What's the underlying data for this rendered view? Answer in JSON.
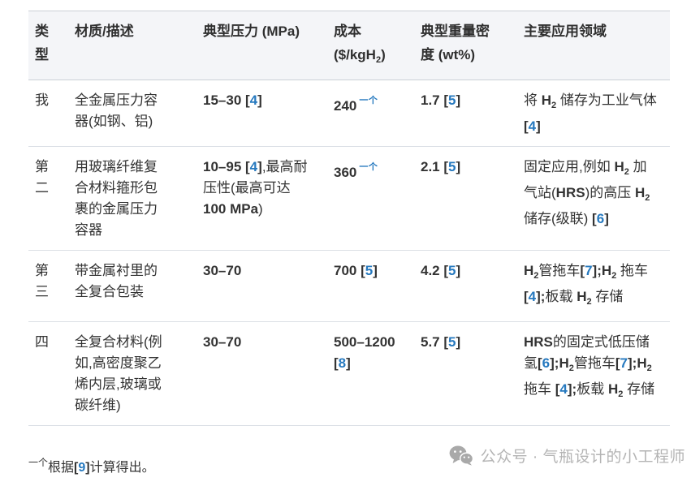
{
  "colors": {
    "accent_blue": "#2679bf",
    "header_bg": "#f4f5f8",
    "row_border": "#dbdfe5",
    "watermark_gray": "#b4b4b4",
    "text": "#333333"
  },
  "table": {
    "headers": [
      {
        "runs": [
          {
            "t": "类型"
          }
        ]
      },
      {
        "runs": [
          {
            "t": "材质/描述"
          }
        ]
      },
      {
        "runs": [
          {
            "t": "典型压力 (MPa)"
          }
        ]
      },
      {
        "runs": [
          {
            "t": "成本 ($/kgH"
          },
          {
            "t": "2",
            "s": "sub"
          },
          {
            "t": ")"
          }
        ]
      },
      {
        "runs": [
          {
            "t": "典型重量密度 (wt%)"
          }
        ]
      },
      {
        "runs": [
          {
            "t": "主要应用领域"
          }
        ]
      }
    ],
    "rows": [
      {
        "cells": [
          [
            {
              "t": "我"
            }
          ],
          [
            {
              "t": "全金属压力容器(如钢、铝)"
            }
          ],
          [
            {
              "t": "15–30 [",
              "s": "b"
            },
            {
              "t": "4",
              "s": "ref"
            },
            {
              "t": "]",
              "s": "b"
            }
          ],
          [
            {
              "t": "240",
              "s": "b"
            },
            {
              "t": "一个",
              "s": "supref"
            }
          ],
          [
            {
              "t": "1.7 [",
              "s": "b"
            },
            {
              "t": "5",
              "s": "ref"
            },
            {
              "t": "]",
              "s": "b"
            }
          ],
          [
            {
              "t": "将 "
            },
            {
              "t": "H",
              "s": "b"
            },
            {
              "t": "2",
              "s": "sub"
            },
            {
              "t": " 储存为工业气体 "
            },
            {
              "t": "[",
              "s": "b"
            },
            {
              "t": "4",
              "s": "ref"
            },
            {
              "t": "]",
              "s": "b"
            }
          ]
        ]
      },
      {
        "cells": [
          [
            {
              "t": "第二"
            }
          ],
          [
            {
              "t": "用玻璃纤维复合材料箍形包裹的金属压力容器"
            }
          ],
          [
            {
              "t": "10–95 [",
              "s": "b"
            },
            {
              "t": "4",
              "s": "ref"
            },
            {
              "t": "]",
              "s": "b"
            },
            {
              "t": ",最高耐压性(最高可达 "
            },
            {
              "t": "100 MPa",
              "s": "b"
            },
            {
              "t": ")"
            }
          ],
          [
            {
              "t": "360",
              "s": "b"
            },
            {
              "t": "一个",
              "s": "supref"
            }
          ],
          [
            {
              "t": "2.1 [",
              "s": "b"
            },
            {
              "t": "5",
              "s": "ref"
            },
            {
              "t": "]",
              "s": "b"
            }
          ],
          [
            {
              "t": "固定应用,例如 "
            },
            {
              "t": "H",
              "s": "b"
            },
            {
              "t": "2",
              "s": "sub"
            },
            {
              "t": " 加气站("
            },
            {
              "t": "HRS",
              "s": "b"
            },
            {
              "t": ")的高压 "
            },
            {
              "t": "H",
              "s": "b"
            },
            {
              "t": "2",
              "s": "sub"
            },
            {
              "t": " 储存(级联) "
            },
            {
              "t": "[",
              "s": "b"
            },
            {
              "t": "6",
              "s": "ref"
            },
            {
              "t": "]",
              "s": "b"
            }
          ]
        ]
      },
      {
        "cells": [
          [
            {
              "t": "第三"
            }
          ],
          [
            {
              "t": "带金属衬里的全复合包装"
            }
          ],
          [
            {
              "t": "30–70",
              "s": "b"
            }
          ],
          [
            {
              "t": "700 [",
              "s": "b"
            },
            {
              "t": "5",
              "s": "ref"
            },
            {
              "t": "]",
              "s": "b"
            }
          ],
          [
            {
              "t": "4.2 [",
              "s": "b"
            },
            {
              "t": "5",
              "s": "ref"
            },
            {
              "t": "]",
              "s": "b"
            }
          ],
          [
            {
              "t": "H",
              "s": "b"
            },
            {
              "t": "2",
              "s": "sub"
            },
            {
              "t": "管拖车"
            },
            {
              "t": "[",
              "s": "b"
            },
            {
              "t": "7",
              "s": "ref"
            },
            {
              "t": "];",
              "s": "b"
            },
            {
              "t": "H",
              "s": "b"
            },
            {
              "t": "2",
              "s": "sub"
            },
            {
              "t": " 拖车 "
            },
            {
              "t": "[",
              "s": "b"
            },
            {
              "t": "4",
              "s": "ref"
            },
            {
              "t": "];",
              "s": "b"
            },
            {
              "t": "板载 "
            },
            {
              "t": "H",
              "s": "b"
            },
            {
              "t": "2",
              "s": "sub"
            },
            {
              "t": " 存储"
            }
          ]
        ]
      },
      {
        "cells": [
          [
            {
              "t": "四"
            }
          ],
          [
            {
              "t": "全复合材料(例如,高密度聚乙烯内层,玻璃或碳纤维)"
            }
          ],
          [
            {
              "t": "30–70",
              "s": "b"
            }
          ],
          [
            {
              "t": "500–1200 [",
              "s": "b"
            },
            {
              "t": "8",
              "s": "ref"
            },
            {
              "t": "]",
              "s": "b"
            }
          ],
          [
            {
              "t": "5.7 [",
              "s": "b"
            },
            {
              "t": "5",
              "s": "ref"
            },
            {
              "t": "]",
              "s": "b"
            }
          ],
          [
            {
              "t": "HRS",
              "s": "b"
            },
            {
              "t": "的固定式低压储氢"
            },
            {
              "t": "[",
              "s": "b"
            },
            {
              "t": "6",
              "s": "ref"
            },
            {
              "t": "];",
              "s": "b"
            },
            {
              "t": "H",
              "s": "b"
            },
            {
              "t": "2",
              "s": "sub"
            },
            {
              "t": "管拖车"
            },
            {
              "t": "[",
              "s": "b"
            },
            {
              "t": "7",
              "s": "ref"
            },
            {
              "t": "];",
              "s": "b"
            },
            {
              "t": "H",
              "s": "b"
            },
            {
              "t": "2",
              "s": "sub"
            },
            {
              "t": " 拖车 "
            },
            {
              "t": "[",
              "s": "b"
            },
            {
              "t": "4",
              "s": "ref"
            },
            {
              "t": "];",
              "s": "b"
            },
            {
              "t": "板载 "
            },
            {
              "t": "H",
              "s": "b"
            },
            {
              "t": "2",
              "s": "sub"
            },
            {
              "t": " 存储"
            }
          ]
        ]
      }
    ]
  },
  "footnote": {
    "runs": [
      {
        "t": "一个",
        "s": "sup"
      },
      {
        "t": "根据"
      },
      {
        "t": "[",
        "s": "b"
      },
      {
        "t": "9",
        "s": "ref"
      },
      {
        "t": "]",
        "s": "b"
      },
      {
        "t": "计算得出。"
      }
    ]
  },
  "watermark": {
    "icon": "wechat-icon",
    "text": "公众号 · 气瓶设计的小工程师"
  }
}
